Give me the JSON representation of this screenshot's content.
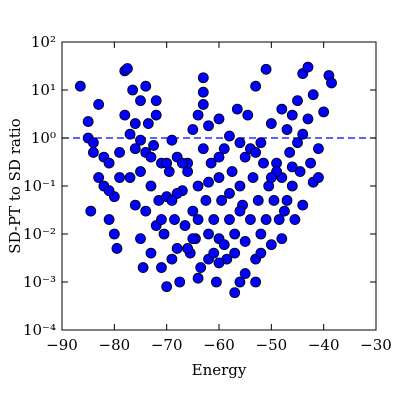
{
  "chart_data": {
    "type": "scatter",
    "xlabel": "Energy",
    "ylabel": "SD-PT to SD ratio",
    "color": "#0000ff",
    "edge_color": "#000000",
    "log_y": true,
    "reference_line": {
      "value": 1,
      "color": "#0000ff",
      "style": "dashed"
    },
    "xlim": [
      -90,
      -30
    ],
    "xticks": [
      {
        "value": -90,
        "label": "−90"
      },
      {
        "value": -80,
        "label": "−80"
      },
      {
        "value": -70,
        "label": "−70"
      },
      {
        "value": -60,
        "label": "−60"
      },
      {
        "value": -50,
        "label": "−50"
      },
      {
        "value": -40,
        "label": "−40"
      },
      {
        "value": -30,
        "label": "−30"
      }
    ],
    "ylim": [
      0.0001,
      100
    ],
    "yticks": [
      {
        "value": 0.0001,
        "label": "10⁻⁴"
      },
      {
        "value": 0.001,
        "label": "10⁻³"
      },
      {
        "value": 0.01,
        "label": "10⁻²"
      },
      {
        "value": 0.1,
        "label": "10⁻¹"
      },
      {
        "value": 1,
        "label": "10⁰"
      },
      {
        "value": 10,
        "label": "10¹"
      },
      {
        "value": 100,
        "label": "10²"
      }
    ],
    "x": [
      -86.5,
      -85,
      -85,
      -84,
      -84,
      -84.5,
      -83,
      -82,
      -82,
      -81,
      -81,
      -80,
      -80,
      -79.5,
      -79,
      -78,
      -78,
      -77.5,
      -77,
      -76.5,
      -76,
      -76,
      -75,
      -75,
      -75,
      -74.5,
      -74,
      -74,
      -73.5,
      -73,
      -73,
      -72.5,
      -72,
      -72,
      -71.5,
      -71,
      -71,
      -70.5,
      -70,
      -70,
      -69.5,
      -69,
      -69,
      -68.5,
      -68,
      -68,
      -67.5,
      -67,
      -66.5,
      -66,
      -65.5,
      -65,
      -65,
      -64.5,
      -64,
      -63.5,
      -63,
      -63,
      -63,
      -62.5,
      -62,
      -62,
      -61.5,
      -61,
      -60.5,
      -60,
      -60,
      -59.5,
      -59,
      -58.5,
      -58,
      -57.5,
      -57,
      -57,
      -56.5,
      -56,
      -56,
      -55.5,
      -55,
      -55,
      -54.5,
      -54,
      -53.5,
      -53,
      -53,
      -52.5,
      -52,
      -52,
      -51.5,
      -51,
      -51,
      -50.5,
      -50,
      -50,
      -49.5,
      -49,
      -48.5,
      -48,
      -48,
      -47.5,
      -47,
      -46.5,
      -46,
      -46,
      -45.5,
      -45,
      -45,
      -44.5,
      -44,
      -44,
      -43,
      -43,
      -42.5,
      -42,
      -42,
      -41,
      -41,
      -40,
      -39,
      -38.5,
      -47,
      -49,
      -72,
      -74,
      -66,
      -60,
      -58,
      -64,
      -68,
      -70,
      -62,
      -56,
      -54,
      -52,
      -59,
      -61,
      -65,
      -67,
      -69,
      -71,
      -73,
      -75,
      -77,
      -79,
      -81,
      -83,
      -76,
      -63,
      -64,
      -62,
      -60,
      -58,
      -56,
      -53,
      -50,
      -48,
      -46,
      -44,
      -66,
      -64,
      -60,
      -57,
      -55,
      -53
    ],
    "values": [
      12,
      2.2,
      1.0,
      0.8,
      0.5,
      0.03,
      5,
      0.4,
      0.1,
      0.3,
      0.02,
      0.06,
      0.01,
      0.005,
      0.15,
      25,
      3,
      28,
      1.2,
      10,
      0.6,
      0.04,
      6,
      0.2,
      0.008,
      0.002,
      0.5,
      0.03,
      2,
      0.1,
      0.004,
      0.7,
      3,
      0.015,
      0.05,
      0.3,
      0.002,
      0.01,
      0.0008,
      0.06,
      0.2,
      0.003,
      0.9,
      0.02,
      0.005,
      0.4,
      0.001,
      0.08,
      0.015,
      0.2,
      0.004,
      0.03,
      1.5,
      0.008,
      0.1,
      0.002,
      18,
      5,
      0.6,
      0.05,
      0.01,
      0.003,
      0.3,
      0.02,
      0.001,
      0.15,
      0.008,
      0.05,
      0.6,
      0.003,
      0.02,
      0.2,
      0.0006,
      0.01,
      4,
      0.1,
      0.001,
      0.04,
      0.4,
      0.007,
      3,
      0.02,
      0.15,
      0.003,
      12,
      0.05,
      0.8,
      0.01,
      0.3,
      0.02,
      27,
      0.1,
      0.006,
      2,
      0.05,
      0.3,
      0.02,
      4,
      0.15,
      0.03,
      1.5,
      0.5,
      0.1,
      3,
      0.02,
      0.8,
      6,
      0.2,
      0.04,
      22,
      30,
      2.5,
      0.3,
      0.12,
      8,
      0.6,
      0.15,
      3.5,
      20,
      14,
      0.05,
      0.2,
      6,
      12,
      0.3,
      0.4,
      0.07,
      0.02,
      0.07,
      0.3,
      0.12,
      0.03,
      0.6,
      0.004,
      0.006,
      0.004,
      0.008,
      0.3,
      0.05,
      0.02,
      0.4,
      0.9,
      0.15,
      0.5,
      0.08,
      0.15,
      2,
      9,
      3,
      1.8,
      2.5,
      1.1,
      0.8,
      0.5,
      0.15,
      0.008,
      0.25,
      1.2,
      0.005,
      0.0012,
      0.0025,
      0.004,
      0.0015,
      0.001
    ]
  }
}
